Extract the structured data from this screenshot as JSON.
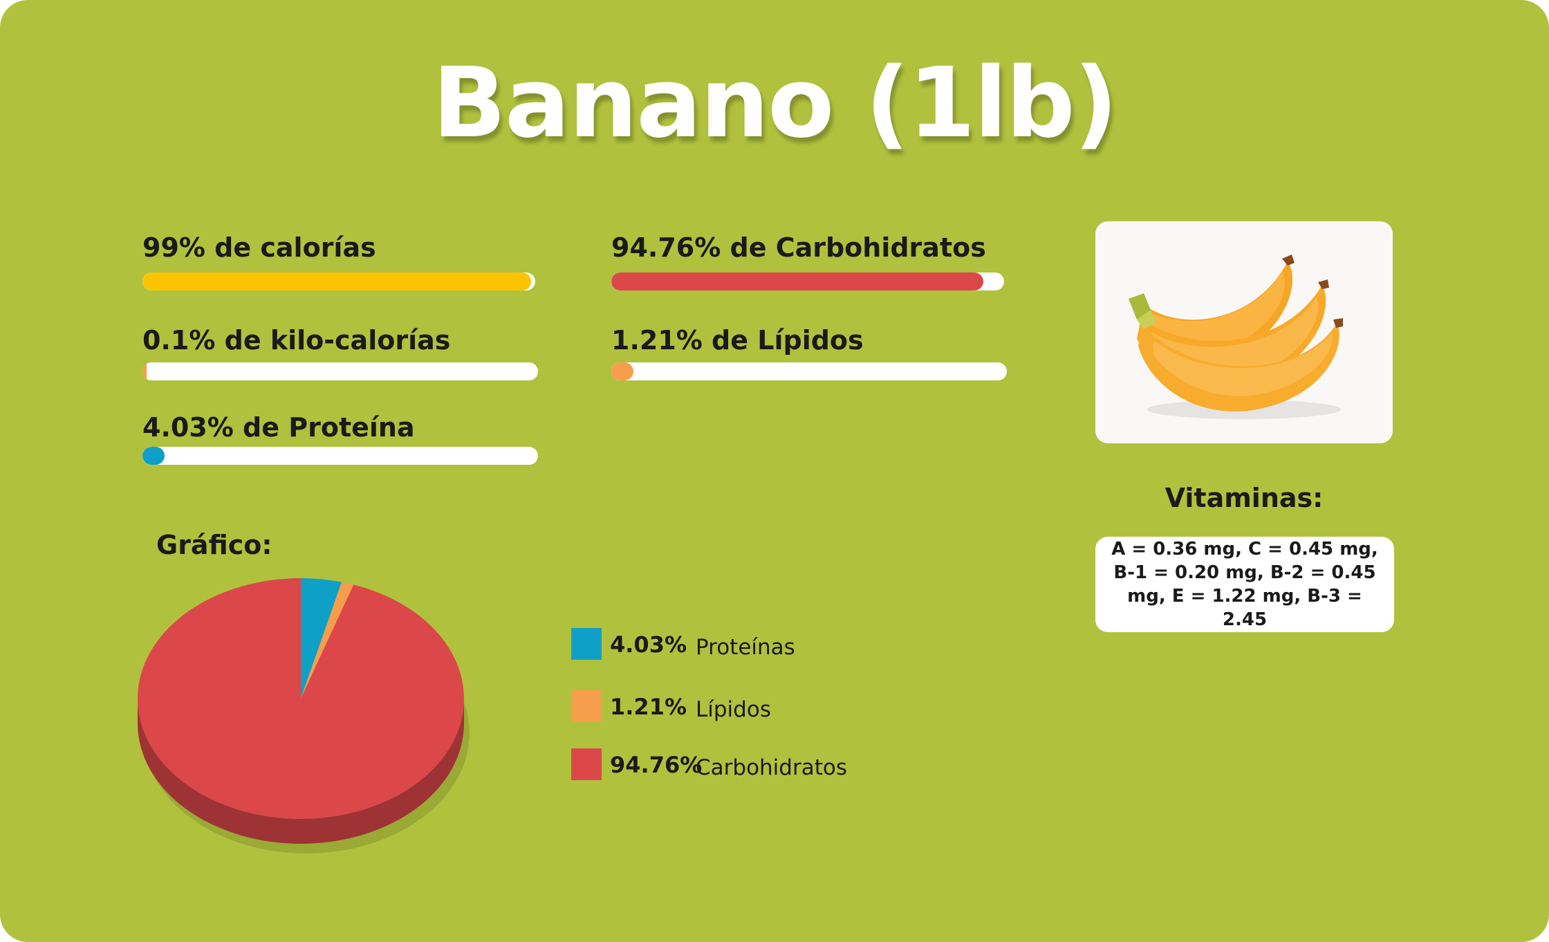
{
  "title": "Banano (1lb)",
  "stats": [
    {
      "label": "99% de calorías",
      "percent": 99,
      "color": "#fcc400"
    },
    {
      "label": "94.76% de Carbohidratos",
      "percent": 94.76,
      "color": "#dc474a"
    },
    {
      "label": "0.1% de kilo-calorías",
      "percent": 0.1,
      "color": "#f79e4c"
    },
    {
      "label": "1.21% de Lípidos",
      "percent": 1.21,
      "color": "#f79e4c"
    },
    {
      "label": "4.03% de Proteína",
      "percent": 4.03,
      "color": "#0fa0c8"
    }
  ],
  "chart_title": "Gráfico:",
  "chart_data": {
    "type": "pie",
    "categories": [
      "Proteínas",
      "Lípidos",
      "Carbohidratos"
    ],
    "values": [
      4.03,
      1.21,
      94.76
    ],
    "value_labels": [
      "4.03%",
      "1.21%",
      "94.76%"
    ],
    "colors": [
      "#0fa0c8",
      "#f79e4c",
      "#dc474a"
    ],
    "legend": "right",
    "style": "3d"
  },
  "image": {
    "icon": "banana-bunch-icon"
  },
  "vitamins": {
    "title": "Vitaminas:",
    "text": "A = 0.36 mg, C = 0.45 mg, B-1 = 0.20 mg, B-2 = 0.45 mg, E = 1.22 mg, B-3 = 2.45"
  }
}
